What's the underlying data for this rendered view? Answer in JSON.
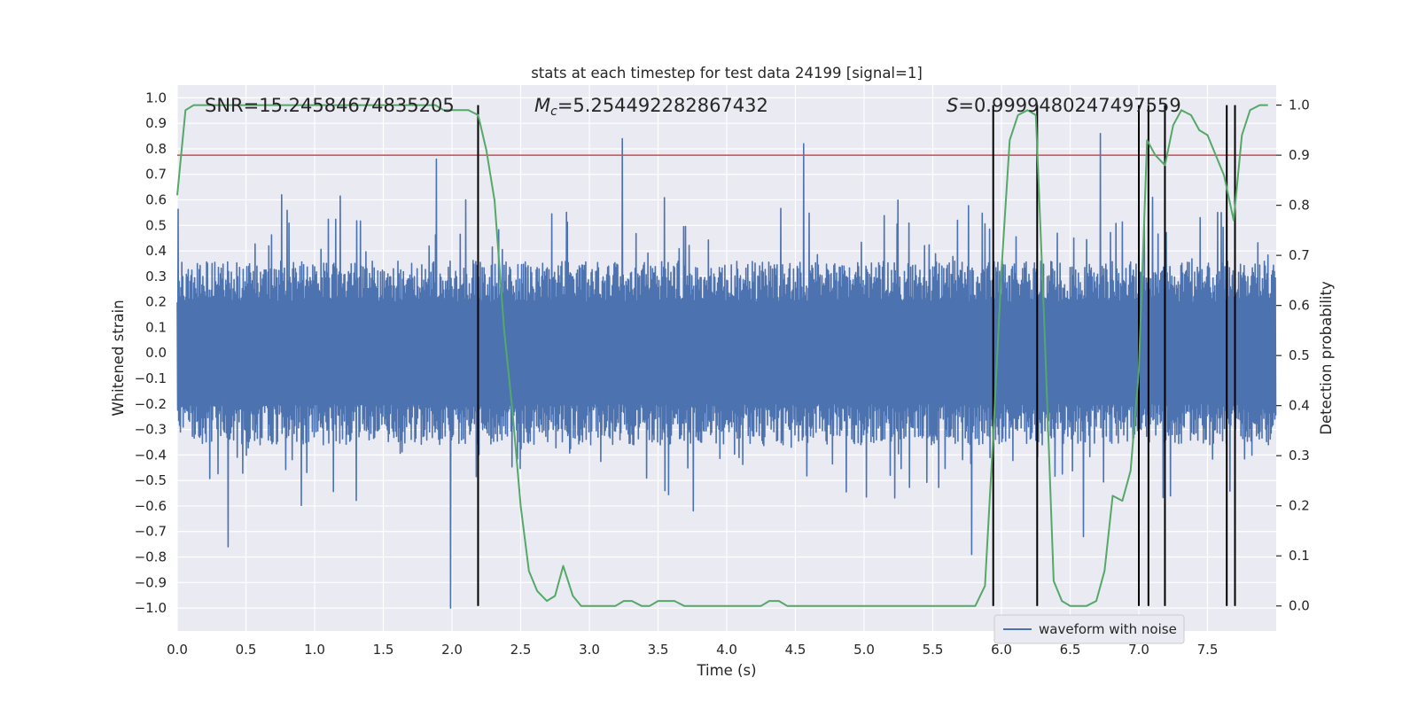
{
  "chart_data": {
    "type": "line",
    "title": "stats at each timestep for test data 24199 [signal=1]",
    "xlabel": "Time (s)",
    "ylabel": "Whitened strain",
    "ylabel_right": "Detection probability",
    "xlim": [
      0.0,
      8.0
    ],
    "ylim": [
      -1.09,
      1.05
    ],
    "ylim_right": [
      -0.05,
      1.04
    ],
    "x_ticks": [
      "0.0",
      "0.5",
      "1.0",
      "1.5",
      "2.0",
      "2.5",
      "3.0",
      "3.5",
      "4.0",
      "4.5",
      "5.0",
      "5.5",
      "6.0",
      "6.5",
      "7.0",
      "7.5"
    ],
    "x_tick_values": [
      0.0,
      0.5,
      1.0,
      1.5,
      2.0,
      2.5,
      3.0,
      3.5,
      4.0,
      4.5,
      5.0,
      5.5,
      6.0,
      6.5,
      7.0,
      7.5
    ],
    "y_ticks": [
      "1.0",
      "0.9",
      "0.8",
      "0.7",
      "0.6",
      "0.5",
      "0.4",
      "0.3",
      "0.2",
      "0.1",
      "0.0",
      "-0.1",
      "-0.2",
      "-0.3",
      "-0.4",
      "-0.5",
      "-0.6",
      "-0.7",
      "-0.8",
      "-0.9",
      "-1.0"
    ],
    "y_tick_values": [
      1.0,
      0.9,
      0.8,
      0.7,
      0.6,
      0.5,
      0.4,
      0.3,
      0.2,
      0.1,
      0.0,
      -0.1,
      -0.2,
      -0.3,
      -0.4,
      -0.5,
      -0.6,
      -0.7,
      -0.8,
      -0.9,
      -1.0
    ],
    "y_ticks_right": [
      "1.0",
      "0.9",
      "0.8",
      "0.7",
      "0.6",
      "0.5",
      "0.4",
      "0.3",
      "0.2",
      "0.1",
      "0.0"
    ],
    "y_tick_values_right": [
      1.0,
      0.9,
      0.8,
      0.7,
      0.6,
      0.5,
      0.4,
      0.3,
      0.2,
      0.1,
      0.0
    ],
    "annotations": [
      {
        "label": "SNR=15.24584674835205",
        "x": 0.2,
        "y": 0.97
      },
      {
        "label": "M_c=5.254492282867432",
        "x": 2.6,
        "y": 0.97
      },
      {
        "label": "S=0.9999480247497559",
        "x": 5.6,
        "y": 0.97
      }
    ],
    "threshold": {
      "value": 0.9,
      "axis": "right",
      "color": "#c44e52"
    },
    "vertical_lines": [
      2.19,
      5.94,
      6.26,
      7.0,
      7.07,
      7.19,
      7.64,
      7.7
    ],
    "vline_range_right": [
      0.0,
      1.0
    ],
    "legend": {
      "entries": [
        "waveform with noise"
      ],
      "placement": "lower-right"
    },
    "colors": {
      "waveform": "#4c72b0",
      "probability": "#55a868",
      "threshold": "#c44e52",
      "vlines": "#000000",
      "background": "#eaeaf2",
      "grid": "#ffffff"
    },
    "waveform": {
      "name": "waveform with noise",
      "sample_count": 2400,
      "envelope_abs": 0.36,
      "peaks": [
        {
          "x": 1.89,
          "y": 0.76
        },
        {
          "x": 3.24,
          "y": 0.84
        },
        {
          "x": 4.56,
          "y": 0.82
        },
        {
          "x": 6.72,
          "y": 0.86
        },
        {
          "x": 7.1,
          "y": 0.61
        },
        {
          "x": 0.37,
          "y": -0.76
        },
        {
          "x": 1.99,
          "y": -1.0
        },
        {
          "x": 5.78,
          "y": -0.79
        },
        {
          "x": 6.6,
          "y": -0.72
        },
        {
          "x": 0.76,
          "y": 0.62
        },
        {
          "x": 2.1,
          "y": 0.6
        },
        {
          "x": 7.6,
          "y": 0.55
        }
      ]
    },
    "series": [
      {
        "name": "detection probability",
        "axis": "right",
        "x": [
          0.0,
          0.06,
          0.12,
          0.19,
          0.25,
          0.31,
          0.38,
          0.44,
          0.5,
          0.56,
          0.62,
          0.69,
          0.75,
          0.81,
          0.88,
          0.94,
          1.0,
          1.06,
          1.12,
          1.19,
          1.25,
          1.31,
          1.38,
          1.44,
          1.5,
          1.56,
          1.62,
          1.69,
          1.75,
          1.81,
          1.88,
          1.94,
          2.0,
          2.06,
          2.12,
          2.19,
          2.25,
          2.31,
          2.38,
          2.44,
          2.5,
          2.56,
          2.62,
          2.69,
          2.75,
          2.81,
          2.88,
          2.94,
          3.0,
          3.06,
          3.12,
          3.19,
          3.25,
          3.31,
          3.38,
          3.44,
          3.5,
          3.56,
          3.62,
          3.69,
          3.75,
          3.81,
          3.88,
          3.94,
          4.0,
          4.06,
          4.12,
          4.19,
          4.25,
          4.31,
          4.38,
          4.44,
          4.5,
          4.56,
          4.62,
          4.69,
          4.75,
          4.81,
          4.88,
          4.94,
          5.0,
          5.06,
          5.12,
          5.19,
          5.25,
          5.31,
          5.38,
          5.44,
          5.5,
          5.56,
          5.62,
          5.69,
          5.75,
          5.81,
          5.88,
          5.94,
          6.0,
          6.06,
          6.12,
          6.19,
          6.25,
          6.31,
          6.38,
          6.44,
          6.5,
          6.56,
          6.62,
          6.69,
          6.75,
          6.81,
          6.88,
          6.94,
          7.0,
          7.06,
          7.12,
          7.19,
          7.25,
          7.31,
          7.38,
          7.44,
          7.5,
          7.56,
          7.62,
          7.69,
          7.75,
          7.81,
          7.88,
          7.94
        ],
        "values": [
          0.82,
          0.99,
          1.0,
          1.0,
          1.0,
          1.0,
          1.0,
          1.0,
          1.0,
          1.0,
          1.0,
          1.0,
          1.0,
          1.0,
          1.0,
          1.0,
          1.0,
          1.0,
          1.0,
          1.0,
          1.0,
          1.0,
          1.0,
          1.0,
          1.0,
          1.0,
          1.0,
          1.0,
          1.0,
          1.0,
          1.0,
          0.99,
          0.99,
          0.99,
          0.99,
          0.98,
          0.91,
          0.81,
          0.55,
          0.39,
          0.2,
          0.07,
          0.03,
          0.01,
          0.02,
          0.08,
          0.02,
          0.0,
          0.0,
          0.0,
          0.0,
          0.0,
          0.01,
          0.01,
          0.0,
          0.0,
          0.01,
          0.01,
          0.01,
          0.0,
          0.0,
          0.0,
          0.0,
          0.0,
          0.0,
          0.0,
          0.0,
          0.0,
          0.0,
          0.01,
          0.01,
          0.0,
          0.0,
          0.0,
          0.0,
          0.0,
          0.0,
          0.0,
          0.0,
          0.0,
          0.0,
          0.0,
          0.0,
          0.0,
          0.0,
          0.0,
          0.0,
          0.0,
          0.0,
          0.0,
          0.0,
          0.0,
          0.0,
          0.0,
          0.04,
          0.34,
          0.67,
          0.93,
          0.98,
          0.99,
          0.98,
          0.58,
          0.05,
          0.01,
          0.0,
          0.0,
          0.0,
          0.01,
          0.07,
          0.22,
          0.21,
          0.27,
          0.47,
          0.93,
          0.9,
          0.88,
          0.96,
          0.99,
          0.98,
          0.95,
          0.94,
          0.9,
          0.86,
          0.77,
          0.94,
          0.99,
          1.0,
          1.0
        ]
      }
    ]
  }
}
